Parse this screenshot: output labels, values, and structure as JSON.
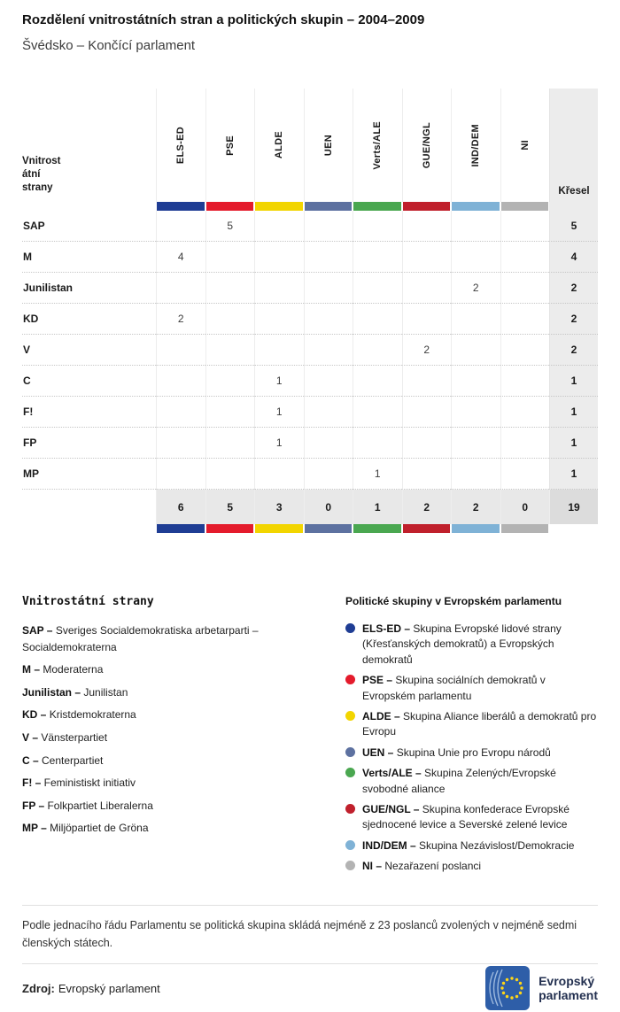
{
  "header": {
    "title": "Rozdělení vnitrostátních stran a politických skupin – 2004–2009",
    "subtitle": "Švédsko – Končící parlament"
  },
  "separator": " – ",
  "table": {
    "row_header_lines": [
      "Vnitrost",
      "átní",
      "strany"
    ],
    "seats_label": "Křesel",
    "groups": [
      {
        "abbr": "ELS-ED",
        "color": "#1f3d94"
      },
      {
        "abbr": "PSE",
        "color": "#e41b2c"
      },
      {
        "abbr": "ALDE",
        "color": "#f2d500"
      },
      {
        "abbr": "UEN",
        "color": "#5d71a0"
      },
      {
        "abbr": "Verts/ALE",
        "color": "#4aa750"
      },
      {
        "abbr": "GUE/NGL",
        "color": "#c0202c"
      },
      {
        "abbr": "IND/DEM",
        "color": "#7fb2d6"
      },
      {
        "abbr": "NI",
        "color": "#b3b3b3"
      }
    ],
    "rows": [
      {
        "party": "SAP",
        "cells": [
          "",
          "5",
          "",
          "",
          "",
          "",
          "",
          ""
        ],
        "seats": "5"
      },
      {
        "party": "M",
        "cells": [
          "4",
          "",
          "",
          "",
          "",
          "",
          "",
          ""
        ],
        "seats": "4"
      },
      {
        "party": "Junilistan",
        "cells": [
          "",
          "",
          "",
          "",
          "",
          "",
          "2",
          ""
        ],
        "seats": "2"
      },
      {
        "party": "KD",
        "cells": [
          "2",
          "",
          "",
          "",
          "",
          "",
          "",
          ""
        ],
        "seats": "2"
      },
      {
        "party": "V",
        "cells": [
          "",
          "",
          "",
          "",
          "",
          "2",
          "",
          ""
        ],
        "seats": "2"
      },
      {
        "party": "C",
        "cells": [
          "",
          "",
          "1",
          "",
          "",
          "",
          "",
          ""
        ],
        "seats": "1"
      },
      {
        "party": "F!",
        "cells": [
          "",
          "",
          "1",
          "",
          "",
          "",
          "",
          ""
        ],
        "seats": "1"
      },
      {
        "party": "FP",
        "cells": [
          "",
          "",
          "1",
          "",
          "",
          "",
          "",
          ""
        ],
        "seats": "1"
      },
      {
        "party": "MP",
        "cells": [
          "",
          "",
          "",
          "",
          "1",
          "",
          "",
          ""
        ],
        "seats": "1"
      }
    ],
    "totals": {
      "cells": [
        "6",
        "5",
        "3",
        "0",
        "1",
        "2",
        "2",
        "0"
      ],
      "seats": "19"
    }
  },
  "legend_parties": {
    "title": "Vnitrostátní strany",
    "items": [
      {
        "abbr": "SAP",
        "name": "Sveriges Socialdemokratiska arbetarparti – Socialdemokraterna"
      },
      {
        "abbr": "M",
        "name": "Moderaterna"
      },
      {
        "abbr": "Junilistan",
        "name": "Junilistan"
      },
      {
        "abbr": "KD",
        "name": "Kristdemokraterna"
      },
      {
        "abbr": "V",
        "name": "Vänsterpartiet"
      },
      {
        "abbr": "C",
        "name": "Centerpartiet"
      },
      {
        "abbr": "F!",
        "name": "Feministiskt initiativ"
      },
      {
        "abbr": "FP",
        "name": "Folkpartiet Liberalerna"
      },
      {
        "abbr": "MP",
        "name": "Miljöpartiet de Gröna"
      }
    ]
  },
  "legend_groups": {
    "title": "Politické skupiny v Evropském parlamentu",
    "items": [
      {
        "abbr": "ELS-ED",
        "color": "#1f3d94",
        "desc": "Skupina Evropské lidové strany (Křesťanských demokratů) a Evropských demokratů"
      },
      {
        "abbr": "PSE",
        "color": "#e41b2c",
        "desc": "Skupina sociálních demokratů v Evropském parlamentu"
      },
      {
        "abbr": "ALDE",
        "color": "#f2d500",
        "desc": "Skupina Aliance liberálů a demokratů pro Evropu"
      },
      {
        "abbr": "UEN",
        "color": "#5d71a0",
        "desc": "Skupina Unie pro Evropu národů"
      },
      {
        "abbr": "Verts/ALE",
        "color": "#4aa750",
        "desc": "Skupina Zelených/Evropské svobodné aliance"
      },
      {
        "abbr": "GUE/NGL",
        "color": "#c0202c",
        "desc": "Skupina konfederace Evropské sjednocené levice a Severské zelené levice"
      },
      {
        "abbr": "IND/DEM",
        "color": "#7fb2d6",
        "desc": "Skupina Nezávislost/Demokracie"
      },
      {
        "abbr": "NI",
        "color": "#b3b3b3",
        "desc": "Nezařazení poslanci"
      }
    ]
  },
  "footer": {
    "note": "Podle jednacího řádu Parlamentu se politická skupina skládá nejméně z 23 poslanců zvolených v nejméně sedmi členských státech.",
    "source_label": "Zdroj:",
    "source_value": "Evropský parlament",
    "logo_line1": "Evropský",
    "logo_line2": "parlament"
  },
  "chart_data": {
    "type": "table",
    "title": "Rozdělení vnitrostátních stran a politických skupin – 2004–2009",
    "subtitle": "Švédsko – Končící parlament",
    "columns": [
      "ELS-ED",
      "PSE",
      "ALDE",
      "UEN",
      "Verts/ALE",
      "GUE/NGL",
      "IND/DEM",
      "NI",
      "Křesel"
    ],
    "rows": [
      {
        "party": "SAP",
        "values": [
          0,
          5,
          0,
          0,
          0,
          0,
          0,
          0
        ],
        "seats": 5
      },
      {
        "party": "M",
        "values": [
          4,
          0,
          0,
          0,
          0,
          0,
          0,
          0
        ],
        "seats": 4
      },
      {
        "party": "Junilistan",
        "values": [
          0,
          0,
          0,
          0,
          0,
          0,
          2,
          0
        ],
        "seats": 2
      },
      {
        "party": "KD",
        "values": [
          2,
          0,
          0,
          0,
          0,
          0,
          0,
          0
        ],
        "seats": 2
      },
      {
        "party": "V",
        "values": [
          0,
          0,
          0,
          0,
          0,
          2,
          0,
          0
        ],
        "seats": 2
      },
      {
        "party": "C",
        "values": [
          0,
          0,
          1,
          0,
          0,
          0,
          0,
          0
        ],
        "seats": 1
      },
      {
        "party": "F!",
        "values": [
          0,
          0,
          1,
          0,
          0,
          0,
          0,
          0
        ],
        "seats": 1
      },
      {
        "party": "FP",
        "values": [
          0,
          0,
          1,
          0,
          0,
          0,
          0,
          0
        ],
        "seats": 1
      },
      {
        "party": "MP",
        "values": [
          0,
          0,
          0,
          0,
          1,
          0,
          0,
          0
        ],
        "seats": 1
      }
    ],
    "totals": [
      6,
      5,
      3,
      0,
      1,
      2,
      2,
      0
    ],
    "total_seats": 19
  }
}
